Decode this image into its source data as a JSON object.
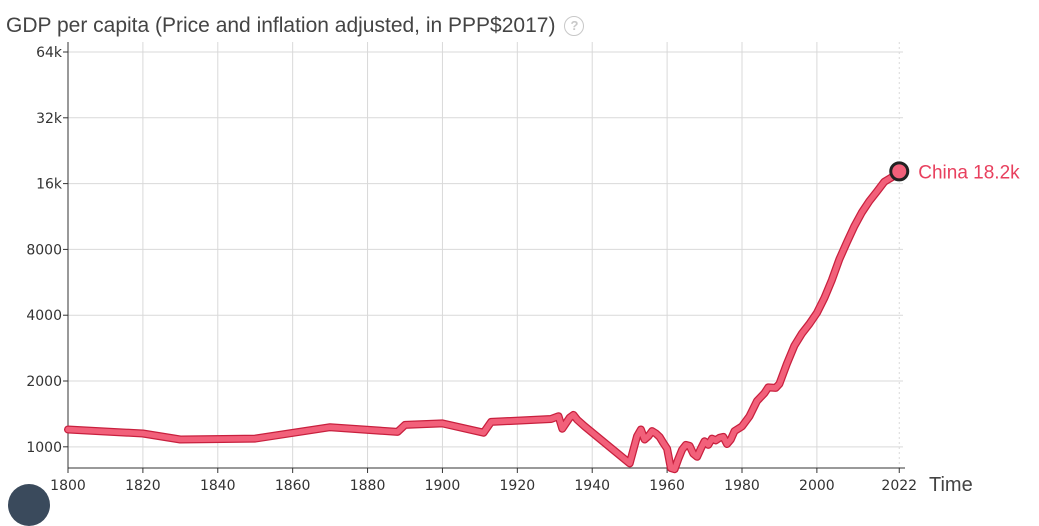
{
  "header": {
    "title": "GDP per capita (Price and inflation adjusted, in PPP$2017)",
    "help_icon": "question-circle-icon"
  },
  "chart_data": {
    "type": "line",
    "title": "GDP per capita (Price and inflation adjusted, in PPP$2017)",
    "xlabel": "Time",
    "ylabel": "",
    "y_scale": "log",
    "xlim": [
      1800,
      2023
    ],
    "ylim": [
      800,
      64000
    ],
    "x_ticks": [
      1800,
      1820,
      1840,
      1860,
      1880,
      1900,
      1920,
      1940,
      1960,
      1980,
      2000,
      2022
    ],
    "y_ticks": [
      1000,
      2000,
      4000,
      8000,
      16000,
      32000,
      64000
    ],
    "y_tick_labels": [
      "1000",
      "2000",
      "4000",
      "8000",
      "16k",
      "32k",
      "64k"
    ],
    "grid": true,
    "series": [
      {
        "name": "China",
        "color": "#f2607a",
        "end_label": "China 18.2k",
        "points": [
          [
            1800,
            1200
          ],
          [
            1820,
            1150
          ],
          [
            1830,
            1080
          ],
          [
            1850,
            1090
          ],
          [
            1870,
            1230
          ],
          [
            1888,
            1170
          ],
          [
            1890,
            1260
          ],
          [
            1900,
            1280
          ],
          [
            1911,
            1160
          ],
          [
            1913,
            1300
          ],
          [
            1929,
            1340
          ],
          [
            1931,
            1380
          ],
          [
            1932,
            1210
          ],
          [
            1934,
            1360
          ],
          [
            1935,
            1400
          ],
          [
            1936,
            1330
          ],
          [
            1938,
            1240
          ],
          [
            1950,
            840
          ],
          [
            1951,
            970
          ],
          [
            1952,
            1120
          ],
          [
            1953,
            1200
          ],
          [
            1954,
            1080
          ],
          [
            1955,
            1120
          ],
          [
            1956,
            1180
          ],
          [
            1957,
            1150
          ],
          [
            1958,
            1110
          ],
          [
            1959,
            1040
          ],
          [
            1960,
            980
          ],
          [
            1961,
            800
          ],
          [
            1962,
            790
          ],
          [
            1963,
            880
          ],
          [
            1964,
            970
          ],
          [
            1965,
            1020
          ],
          [
            1966,
            1010
          ],
          [
            1967,
            930
          ],
          [
            1968,
            900
          ],
          [
            1969,
            980
          ],
          [
            1970,
            1060
          ],
          [
            1971,
            1020
          ],
          [
            1972,
            1090
          ],
          [
            1973,
            1070
          ],
          [
            1974,
            1100
          ],
          [
            1975,
            1110
          ],
          [
            1976,
            1030
          ],
          [
            1977,
            1080
          ],
          [
            1978,
            1180
          ],
          [
            1980,
            1240
          ],
          [
            1982,
            1380
          ],
          [
            1984,
            1620
          ],
          [
            1986,
            1760
          ],
          [
            1987,
            1870
          ],
          [
            1989,
            1860
          ],
          [
            1990,
            1940
          ],
          [
            1992,
            2400
          ],
          [
            1994,
            2900
          ],
          [
            1996,
            3300
          ],
          [
            1998,
            3650
          ],
          [
            2000,
            4100
          ],
          [
            2002,
            4800
          ],
          [
            2004,
            5800
          ],
          [
            2006,
            7200
          ],
          [
            2008,
            8600
          ],
          [
            2010,
            10200
          ],
          [
            2012,
            11800
          ],
          [
            2014,
            13300
          ],
          [
            2016,
            14700
          ],
          [
            2018,
            16300
          ],
          [
            2020,
            17100
          ],
          [
            2021,
            17900
          ],
          [
            2022,
            18200
          ]
        ]
      }
    ]
  }
}
